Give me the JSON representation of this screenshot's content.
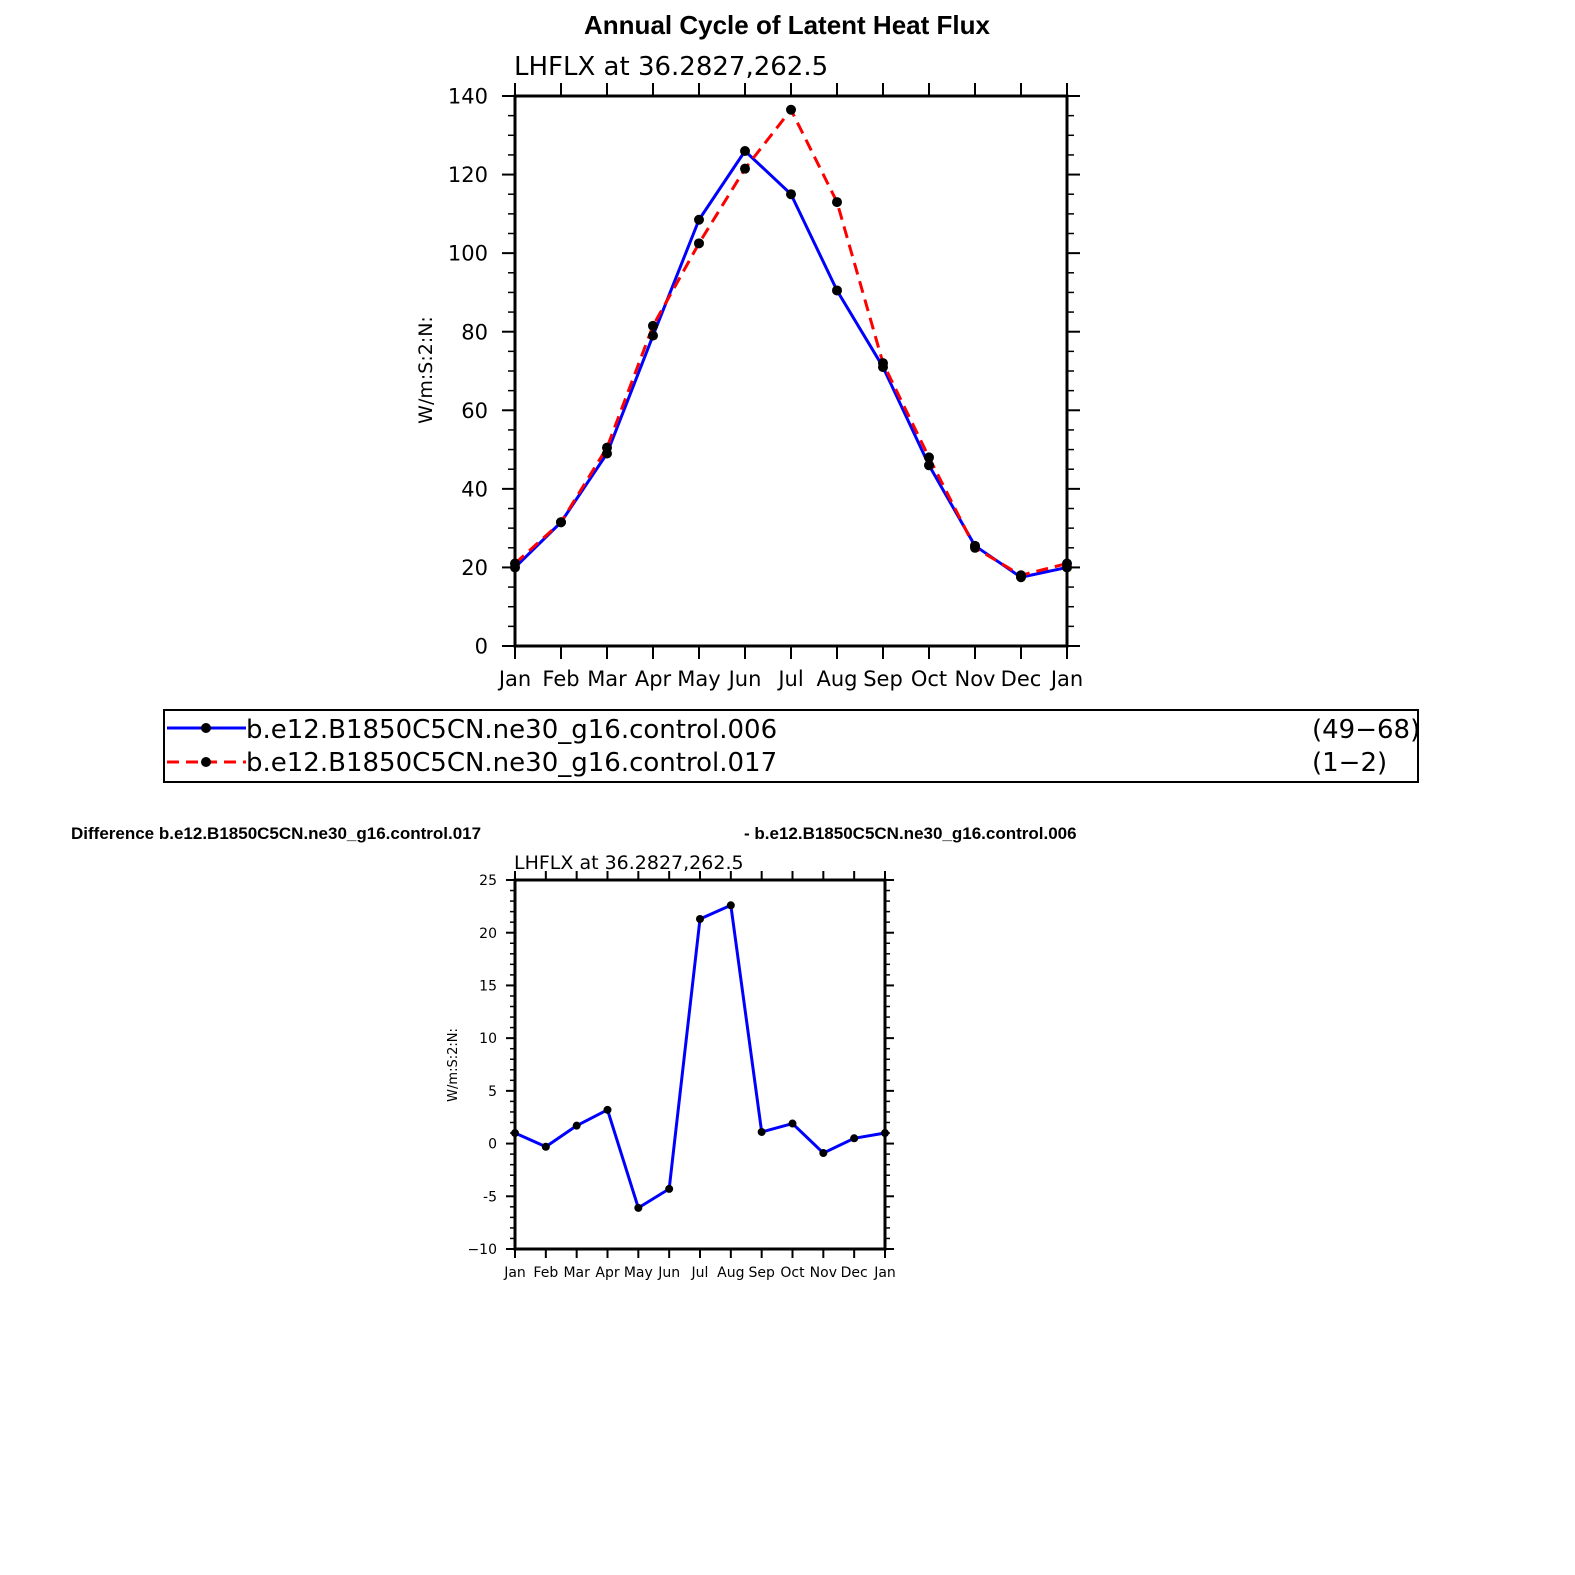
{
  "main_title": "Annual Cycle of Latent Heat Flux",
  "diff_title": {
    "left": "Difference b.e12.B1850C5CN.ne30_g16.control.017",
    "right": "- b.e12.B1850C5CN.ne30_g16.control.006"
  },
  "colors": {
    "series_control_006": "#0000ff",
    "series_control_017": "#ff0000",
    "marker": "#000000",
    "axis": "#000000"
  },
  "legend": [
    {
      "name": "b.e12.B1850C5CN.ne30_g16.control.006",
      "years": "(49−68)",
      "style": "solid",
      "color": "#0000ff"
    },
    {
      "name": "b.e12.B1850C5CN.ne30_g16.control.017",
      "years": "(1−2)",
      "style": "dashed",
      "color": "#ff0000"
    }
  ],
  "chart_data": [
    {
      "id": "annual_cycle",
      "type": "line",
      "subtitle": "LHFLX at 36.2827,262.5",
      "ylabel": "W/m:S:2:N:",
      "xlabel": "",
      "categories": [
        "Jan",
        "Feb",
        "Mar",
        "Apr",
        "May",
        "Jun",
        "Jul",
        "Aug",
        "Sep",
        "Oct",
        "Nov",
        "Dec",
        "Jan"
      ],
      "ylim": [
        0,
        140
      ],
      "yticks": [
        0,
        20,
        40,
        60,
        80,
        100,
        120,
        140
      ],
      "yticks_labels": [
        "0",
        "20",
        "40",
        "60",
        "80",
        "100",
        "120",
        "140"
      ],
      "grid": false,
      "series": [
        {
          "name": "b.e12.B1850C5CN.ne30_g16.control.006",
          "style": "solid",
          "color": "#0000ff",
          "values": [
            20,
            31.5,
            49,
            79,
            108.5,
            126,
            115,
            90.5,
            71,
            46,
            25.5,
            17.5,
            20
          ]
        },
        {
          "name": "b.e12.B1850C5CN.ne30_g16.control.017",
          "style": "dashed",
          "color": "#ff0000",
          "values": [
            21,
            31.5,
            50.5,
            81.5,
            102.5,
            121.5,
            136.5,
            113,
            72,
            48,
            25,
            18,
            21
          ]
        }
      ]
    },
    {
      "id": "difference",
      "type": "line",
      "subtitle": "LHFLX at 36.2827,262.5",
      "ylabel": "W/m:S:2:N:",
      "xlabel": "",
      "categories": [
        "Jan",
        "Feb",
        "Mar",
        "Apr",
        "May",
        "Jun",
        "Jul",
        "Aug",
        "Sep",
        "Oct",
        "Nov",
        "Dec",
        "Jan"
      ],
      "ylim": [
        -10,
        25
      ],
      "yticks": [
        -10,
        -5,
        0,
        5,
        10,
        15,
        20,
        25
      ],
      "yticks_labels": [
        "−10",
        "-5",
        "0",
        "5",
        "10",
        "15",
        "20",
        "25"
      ],
      "grid": false,
      "series": [
        {
          "name": "",
          "style": "solid",
          "color": "#0000ff",
          "values": [
            1,
            -0.3,
            1.7,
            3.2,
            -6.1,
            -4.3,
            21.3,
            22.6,
            1.1,
            1.9,
            -0.9,
            0.5,
            1
          ]
        }
      ]
    }
  ]
}
